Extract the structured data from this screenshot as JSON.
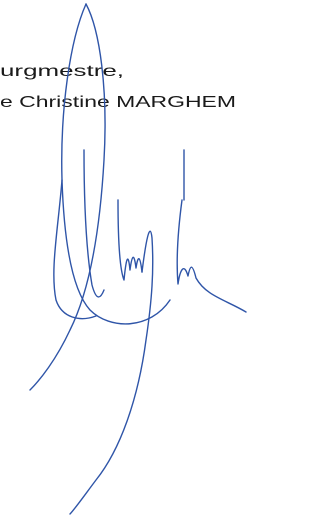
{
  "lines": [
    "urgmestre,",
    "e Christine MARGHEM"
  ]
}
